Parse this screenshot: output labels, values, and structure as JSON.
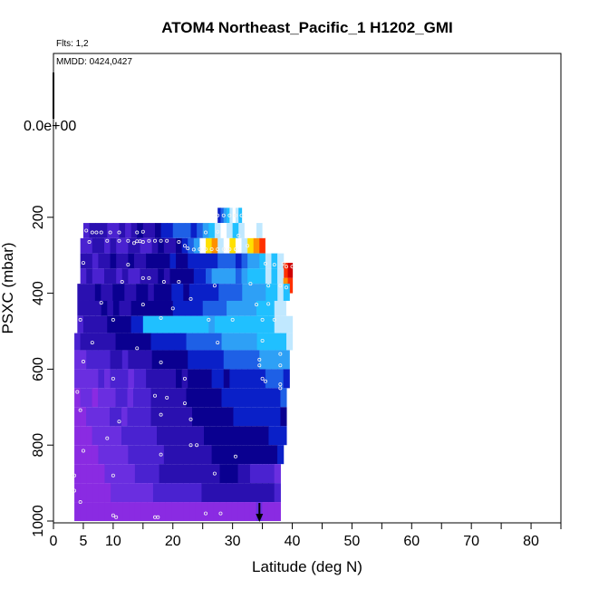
{
  "chart_data": {
    "type": "heatmap",
    "title": "ATOM4 Northeast_Pacific_1 H1202_GMI",
    "subtitle": "Flts: 1,2",
    "annotation": "MMDD: 0424,0427",
    "xlabel": "Latitude (deg N)",
    "ylabel": "PSXC (mbar)",
    "xlim": [
      0,
      85
    ],
    "ylim": [
      1000,
      0
    ],
    "x_ticks": [
      0,
      5,
      10,
      20,
      30,
      40,
      50,
      60,
      70,
      80
    ],
    "x_minor_ticks": [
      15,
      25,
      35,
      45,
      55,
      65,
      75,
      85
    ],
    "y_ticks": [
      200,
      400,
      600,
      800,
      1000
    ],
    "y_scale_label": "0.0e+00",
    "grid": false,
    "legend": "none",
    "arrow_marker": {
      "x": 34.5,
      "y": 1000
    },
    "palette": [
      "#8a2be2",
      "#6a2ee0",
      "#4a22d0",
      "#2a10b0",
      "#0a0090",
      "#0a20c8",
      "#1e60e6",
      "#2ea0f6",
      "#20c0ff",
      "#c0e8ff",
      "#ffffff",
      "#ffe000",
      "#ff9000",
      "#ff3000",
      "#d00000"
    ],
    "rows": [
      {
        "p0": 175,
        "p1": 215,
        "x0": 27.5,
        "x1": 31.5,
        "cells": [
          5,
          6,
          7,
          8,
          9,
          10,
          9,
          8
        ]
      },
      {
        "p0": 215,
        "p1": 255,
        "x0": 5,
        "x1": 36,
        "cells": [
          2,
          3,
          3,
          3,
          2,
          2,
          3,
          2,
          3,
          4,
          3,
          3,
          4,
          5,
          5,
          6,
          6,
          6,
          5,
          6,
          7,
          8,
          9,
          10,
          9,
          8,
          9,
          10,
          10,
          9,
          10
        ]
      },
      {
        "p0": 255,
        "p1": 295,
        "x0": 4.5,
        "x1": 36.5,
        "cells": [
          2,
          2,
          3,
          3,
          2,
          3,
          2,
          2,
          3,
          3,
          2,
          2,
          3,
          4,
          3,
          3,
          4,
          5,
          6,
          7,
          10,
          11,
          12,
          9,
          10,
          11,
          10,
          9,
          11,
          12,
          13,
          10
        ]
      },
      {
        "p0": 295,
        "p1": 335,
        "x0": 4.5,
        "x1": 38.5,
        "cells": [
          3,
          3,
          2,
          3,
          3,
          4,
          3,
          3,
          4,
          3,
          3,
          4,
          4,
          4,
          4,
          5,
          4,
          4,
          5,
          5,
          5,
          5,
          5,
          6,
          6,
          6,
          5,
          6,
          7,
          7,
          8,
          9,
          8,
          9
        ]
      },
      {
        "p0": 320,
        "p1": 360,
        "x0": 38.5,
        "x1": 40,
        "cells": [
          13,
          14
        ]
      },
      {
        "p0": 335,
        "p1": 375,
        "x0": 4.5,
        "x1": 38.5,
        "cells": [
          2,
          3,
          2,
          2,
          3,
          3,
          2,
          3,
          2,
          2,
          3,
          3,
          3,
          4,
          3,
          4,
          4,
          4,
          4,
          5,
          5,
          6,
          7,
          7,
          7,
          7,
          6,
          7,
          8,
          8,
          8,
          9,
          8,
          9
        ]
      },
      {
        "p0": 360,
        "p1": 400,
        "x0": 38.5,
        "x1": 40,
        "cells": [
          12,
          13
        ]
      },
      {
        "p0": 375,
        "p1": 420,
        "x0": 4,
        "x1": 39.5,
        "cells": [
          3,
          3,
          3,
          4,
          3,
          3,
          4,
          4,
          3,
          3,
          4,
          4,
          3,
          4,
          4,
          4,
          5,
          5,
          4,
          5,
          5,
          5,
          5,
          5,
          6,
          6,
          6,
          6,
          7,
          7,
          7,
          7,
          8,
          8,
          9,
          8
        ]
      },
      {
        "p0": 420,
        "p1": 460,
        "x0": 4,
        "x1": 40,
        "cells": [
          3,
          3,
          3,
          3,
          4,
          3,
          4,
          3,
          3,
          4,
          4,
          4,
          4,
          4,
          4,
          4,
          5,
          5,
          5,
          5,
          5,
          6,
          6,
          6,
          6,
          7,
          7,
          7,
          7,
          7,
          8,
          8,
          8,
          9,
          9,
          10
        ]
      },
      {
        "p0": 460,
        "p1": 505,
        "x0": 4,
        "x1": 40,
        "cells": [
          2,
          3,
          3,
          3,
          3,
          4,
          4,
          4,
          4,
          5,
          5,
          8,
          8,
          8,
          8,
          8,
          8,
          8,
          8,
          8,
          8,
          8,
          7,
          8,
          8,
          8,
          8,
          8,
          8,
          8,
          8,
          8,
          8,
          9,
          9,
          9
        ]
      },
      {
        "p0": 505,
        "p1": 550,
        "x0": 3.5,
        "x1": 40,
        "cells": [
          2,
          3,
          3,
          3,
          3,
          3,
          3,
          4,
          4,
          4,
          4,
          4,
          4,
          5,
          5,
          5,
          5,
          5,
          5,
          6,
          6,
          6,
          6,
          6,
          6,
          7,
          7,
          7,
          7,
          7,
          7,
          8,
          8,
          8,
          8,
          8,
          9
        ]
      },
      {
        "p0": 550,
        "p1": 600,
        "x0": 3.5,
        "x1": 39.5,
        "cells": [
          1,
          1,
          2,
          2,
          2,
          2,
          3,
          3,
          2,
          3,
          3,
          3,
          3,
          4,
          4,
          4,
          4,
          4,
          4,
          5,
          5,
          5,
          5,
          5,
          5,
          6,
          6,
          6,
          6,
          6,
          6,
          7,
          7,
          7,
          7,
          7
        ]
      },
      {
        "p0": 600,
        "p1": 650,
        "x0": 3.5,
        "x1": 39.5,
        "cells": [
          1,
          1,
          1,
          1,
          2,
          1,
          2,
          2,
          2,
          1,
          2,
          2,
          3,
          3,
          3,
          3,
          3,
          4,
          3,
          4,
          4,
          4,
          4,
          5,
          5,
          4,
          5,
          5,
          5,
          5,
          5,
          5,
          6,
          6,
          6,
          5
        ]
      },
      {
        "p0": 650,
        "p1": 700,
        "x0": 3.5,
        "x1": 39,
        "cells": [
          0,
          1,
          1,
          0,
          1,
          1,
          1,
          2,
          2,
          1,
          2,
          2,
          2,
          3,
          3,
          3,
          3,
          3,
          3,
          4,
          4,
          4,
          4,
          4,
          4,
          5,
          5,
          5,
          5,
          5,
          5,
          5,
          5,
          5,
          5,
          6
        ]
      },
      {
        "p0": 700,
        "p1": 750,
        "x0": 3.5,
        "x1": 39,
        "cells": [
          0,
          0,
          1,
          1,
          1,
          1,
          2,
          2,
          1,
          2,
          2,
          2,
          2,
          3,
          3,
          3,
          3,
          3,
          3,
          3,
          4,
          4,
          4,
          4,
          4,
          4,
          4,
          5,
          5,
          5,
          5,
          5,
          5,
          5,
          5,
          4
        ]
      },
      {
        "p0": 750,
        "p1": 800,
        "x0": 3.5,
        "x1": 39,
        "cells": [
          0,
          0,
          0,
          1,
          1,
          1,
          1,
          1,
          2,
          2,
          2,
          2,
          2,
          2,
          3,
          3,
          3,
          3,
          3,
          3,
          3,
          3,
          4,
          4,
          4,
          4,
          4,
          4,
          4,
          4,
          4,
          4,
          4,
          5,
          5,
          5
        ]
      },
      {
        "p0": 800,
        "p1": 850,
        "x0": 3.5,
        "x1": 38.5,
        "cells": [
          0,
          0,
          0,
          0,
          1,
          1,
          1,
          1,
          1,
          2,
          2,
          2,
          2,
          2,
          2,
          3,
          3,
          3,
          3,
          3,
          3,
          3,
          3,
          4,
          4,
          4,
          4,
          4,
          4,
          4,
          4,
          4,
          4,
          4,
          5
        ]
      },
      {
        "p0": 850,
        "p1": 900,
        "x0": 3.5,
        "x1": 38,
        "cells": [
          0,
          0,
          0,
          0,
          0,
          1,
          1,
          1,
          1,
          1,
          2,
          2,
          2,
          2,
          3,
          3,
          3,
          3,
          3,
          3,
          3,
          3,
          3,
          3,
          4,
          4,
          4,
          3,
          3,
          2,
          2,
          2,
          2,
          1
        ]
      },
      {
        "p0": 900,
        "p1": 950,
        "x0": 3.5,
        "x1": 38,
        "cells": [
          0,
          0,
          0,
          0,
          0,
          0,
          1,
          1,
          1,
          1,
          1,
          1,
          1,
          2,
          2,
          2,
          2,
          2,
          2,
          2,
          2,
          3,
          3,
          3,
          3,
          3,
          3,
          3,
          3,
          3,
          3,
          3,
          3,
          2
        ]
      },
      {
        "p0": 950,
        "p1": 1000,
        "x0": 3.5,
        "x1": 38,
        "cells": [
          0,
          0,
          0,
          0,
          0,
          0,
          0,
          0,
          0,
          0,
          0,
          0,
          0,
          0,
          0,
          0,
          0,
          0,
          0,
          0,
          0,
          0,
          0,
          0,
          0,
          0,
          0,
          0,
          0,
          0,
          1,
          0,
          0,
          0
        ]
      }
    ],
    "points": [
      [
        27.5,
        195
      ],
      [
        28.5,
        195
      ],
      [
        29.5,
        195
      ],
      [
        30.5,
        195
      ],
      [
        31.5,
        195
      ],
      [
        5.5,
        235
      ],
      [
        6.5,
        240
      ],
      [
        7.2,
        240
      ],
      [
        8,
        240
      ],
      [
        9.5,
        240
      ],
      [
        11,
        240
      ],
      [
        14,
        240
      ],
      [
        15,
        238
      ],
      [
        25.5,
        240
      ],
      [
        27.5,
        238
      ],
      [
        31,
        248
      ],
      [
        6,
        265
      ],
      [
        9,
        262
      ],
      [
        11,
        262
      ],
      [
        12.5,
        262
      ],
      [
        13.5,
        268
      ],
      [
        14,
        263
      ],
      [
        14.5,
        263
      ],
      [
        15,
        265
      ],
      [
        16,
        262
      ],
      [
        17,
        262
      ],
      [
        18,
        262
      ],
      [
        19,
        262
      ],
      [
        21,
        265
      ],
      [
        22,
        275
      ],
      [
        22.5,
        282
      ],
      [
        23.5,
        285
      ],
      [
        24.5,
        284
      ],
      [
        25.5,
        284
      ],
      [
        26.5,
        284
      ],
      [
        27.5,
        284
      ],
      [
        28.5,
        284
      ],
      [
        29.5,
        284
      ],
      [
        30.5,
        284
      ],
      [
        32.5,
        275
      ],
      [
        5,
        320
      ],
      [
        12.5,
        325
      ],
      [
        35.5,
        322
      ],
      [
        37,
        325
      ],
      [
        38.5,
        322
      ],
      [
        39,
        330
      ],
      [
        40,
        330
      ],
      [
        11.5,
        370
      ],
      [
        15,
        360
      ],
      [
        16,
        360
      ],
      [
        18.5,
        370
      ],
      [
        21,
        370
      ],
      [
        27,
        380
      ],
      [
        33,
        375
      ],
      [
        36,
        380
      ],
      [
        38,
        380
      ],
      [
        39,
        385
      ],
      [
        8,
        425
      ],
      [
        15,
        430
      ],
      [
        20,
        440
      ],
      [
        23,
        415
      ],
      [
        34,
        430
      ],
      [
        36,
        428
      ],
      [
        4.5,
        470
      ],
      [
        10,
        470
      ],
      [
        18,
        465
      ],
      [
        26,
        470
      ],
      [
        30,
        470
      ],
      [
        35,
        470
      ],
      [
        37,
        470
      ],
      [
        6.5,
        530
      ],
      [
        14,
        545
      ],
      [
        27.5,
        530
      ],
      [
        35,
        525
      ],
      [
        38,
        560
      ],
      [
        5,
        580
      ],
      [
        18,
        582
      ],
      [
        34.5,
        575
      ],
      [
        34.5,
        590
      ],
      [
        38,
        590
      ],
      [
        10,
        625
      ],
      [
        22,
        625
      ],
      [
        35,
        625
      ],
      [
        35.5,
        632
      ],
      [
        38,
        640
      ],
      [
        38,
        650
      ],
      [
        4,
        660
      ],
      [
        17,
        670
      ],
      [
        19,
        675
      ],
      [
        22,
        690
      ],
      [
        4.5,
        708
      ],
      [
        11,
        738
      ],
      [
        18,
        720
      ],
      [
        23,
        732
      ],
      [
        9,
        782
      ],
      [
        23,
        800
      ],
      [
        24,
        800
      ],
      [
        5,
        815
      ],
      [
        18,
        825
      ],
      [
        30.5,
        830
      ],
      [
        3.5,
        880
      ],
      [
        10,
        880
      ],
      [
        27,
        875
      ],
      [
        3.5,
        920
      ],
      [
        4.5,
        950
      ],
      [
        10,
        985
      ],
      [
        10.5,
        990
      ],
      [
        17,
        990
      ],
      [
        17.5,
        990
      ],
      [
        25.5,
        980
      ],
      [
        28,
        980
      ]
    ]
  }
}
